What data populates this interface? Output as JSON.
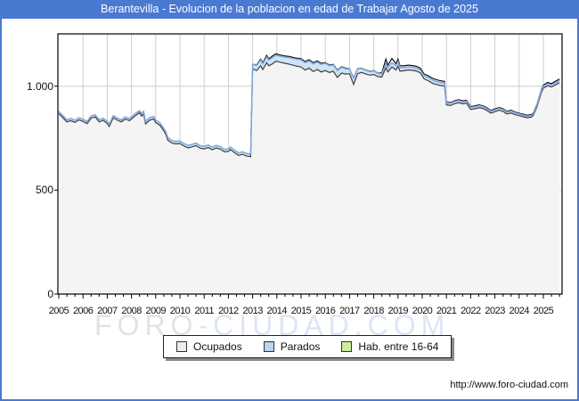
{
  "window": {
    "title": "Berantevilla - Evolucion de la poblacion en edad de Trabajar Agosto de 2025"
  },
  "footer": {
    "url": "http://www.foro-ciudad.com"
  },
  "watermark": {
    "left": "FORO",
    "right": "-CIUDAD.COM"
  },
  "colors": {
    "titlebar": "#4a79d2",
    "frame_border": "#4a79d2",
    "grid": "#cdcdcd",
    "plot_border": "#000000",
    "ocupados_fill": "#f4f4f4",
    "ocupados_stroke": "#3f3f3f",
    "parados_fill": "#cfe2f6",
    "parados_stroke": "#7fa8dc",
    "hab_stroke": "#000000",
    "watermark_left": "#e3e3e3",
    "watermark_right": "#dde5f7"
  },
  "legend": {
    "items": [
      {
        "label": "Ocupados",
        "swatch": "#ececec"
      },
      {
        "label": "Parados",
        "swatch": "#b9d3f0"
      },
      {
        "label": "Hab. entre 16-64",
        "swatch": "#c9ef9e"
      }
    ]
  },
  "chart_data": {
    "type": "area",
    "title": "Berantevilla - Evolucion de la poblacion en edad de Trabajar Agosto de 2025",
    "xlabel": "",
    "ylabel": "",
    "grid": true,
    "legend_position": "bottom",
    "xlim": [
      2005,
      2025.81
    ],
    "ylim": [
      0,
      1251
    ],
    "x_tick_labels": [
      "2005",
      "2006",
      "2007",
      "2008",
      "2009",
      "2010",
      "2011",
      "2012",
      "2013",
      "2014",
      "2015",
      "2016",
      "2017",
      "2018",
      "2019",
      "2020",
      "2021",
      "2022",
      "2023",
      "2024",
      "2025"
    ],
    "y_ticks": [
      {
        "value": 0,
        "label": "0"
      },
      {
        "value": 500,
        "label": "500"
      },
      {
        "value": 1000,
        "label": "1.000"
      }
    ],
    "series_names": [
      "Ocupados",
      "Parados",
      "Hab. entre 16-64"
    ],
    "points_format": [
      "year_decimal",
      "ocupados",
      "parados",
      "hab_16_64_total"
    ],
    "points": [
      [
        2005.0,
        868,
        10,
        878
      ],
      [
        2005.17,
        848,
        10,
        858
      ],
      [
        2005.33,
        828,
        10,
        838
      ],
      [
        2005.5,
        834,
        10,
        844
      ],
      [
        2005.67,
        826,
        10,
        836
      ],
      [
        2005.83,
        838,
        10,
        848
      ],
      [
        2006.0,
        830,
        10,
        840
      ],
      [
        2006.17,
        820,
        10,
        830
      ],
      [
        2006.33,
        846,
        10,
        856
      ],
      [
        2006.5,
        852,
        10,
        862
      ],
      [
        2006.67,
        828,
        10,
        838
      ],
      [
        2006.83,
        836,
        10,
        846
      ],
      [
        2007.0,
        820,
        10,
        830
      ],
      [
        2007.08,
        806,
        10,
        816
      ],
      [
        2007.25,
        848,
        10,
        858
      ],
      [
        2007.42,
        836,
        10,
        846
      ],
      [
        2007.58,
        828,
        10,
        838
      ],
      [
        2007.75,
        842,
        10,
        852
      ],
      [
        2007.92,
        834,
        10,
        844
      ],
      [
        2008.08,
        850,
        10,
        860
      ],
      [
        2008.25,
        866,
        10,
        876
      ],
      [
        2008.33,
        872,
        10,
        882
      ],
      [
        2008.42,
        856,
        12,
        868
      ],
      [
        2008.5,
        866,
        12,
        878
      ],
      [
        2008.58,
        818,
        12,
        830
      ],
      [
        2008.75,
        836,
        12,
        848
      ],
      [
        2008.92,
        842,
        12,
        854
      ],
      [
        2009.0,
        824,
        12,
        836
      ],
      [
        2009.17,
        812,
        12,
        824
      ],
      [
        2009.33,
        786,
        12,
        798
      ],
      [
        2009.42,
        768,
        12,
        780
      ],
      [
        2009.5,
        740,
        12,
        752
      ],
      [
        2009.67,
        726,
        12,
        738
      ],
      [
        2009.83,
        722,
        12,
        734
      ],
      [
        2010.0,
        724,
        12,
        736
      ],
      [
        2010.17,
        712,
        12,
        724
      ],
      [
        2010.33,
        703,
        12,
        715
      ],
      [
        2010.5,
        708,
        12,
        720
      ],
      [
        2010.67,
        714,
        12,
        726
      ],
      [
        2010.83,
        702,
        12,
        714
      ],
      [
        2011.0,
        698,
        12,
        710
      ],
      [
        2011.17,
        705,
        12,
        717
      ],
      [
        2011.33,
        694,
        12,
        706
      ],
      [
        2011.5,
        703,
        12,
        715
      ],
      [
        2011.67,
        697,
        12,
        709
      ],
      [
        2011.83,
        684,
        12,
        696
      ],
      [
        2012.0,
        686,
        12,
        698
      ],
      [
        2012.08,
        695,
        12,
        707
      ],
      [
        2012.25,
        680,
        12,
        692
      ],
      [
        2012.42,
        667,
        12,
        679
      ],
      [
        2012.58,
        672,
        12,
        684
      ],
      [
        2012.75,
        664,
        12,
        676
      ],
      [
        2012.92,
        661,
        12,
        673
      ],
      [
        2013.0,
        1083,
        22,
        1105
      ],
      [
        2013.17,
        1075,
        25,
        1103
      ],
      [
        2013.33,
        1098,
        27,
        1130
      ],
      [
        2013.42,
        1080,
        28,
        1113
      ],
      [
        2013.58,
        1112,
        28,
        1148
      ],
      [
        2013.67,
        1098,
        28,
        1131
      ],
      [
        2013.83,
        1108,
        30,
        1146
      ],
      [
        2013.96,
        1120,
        28,
        1156
      ],
      [
        2014.17,
        1114,
        30,
        1149
      ],
      [
        2014.33,
        1110,
        30,
        1145
      ],
      [
        2014.5,
        1106,
        32,
        1143
      ],
      [
        2014.75,
        1098,
        33,
        1136
      ],
      [
        2015.0,
        1092,
        35,
        1132
      ],
      [
        2015.17,
        1077,
        36,
        1118
      ],
      [
        2015.33,
        1087,
        35,
        1127
      ],
      [
        2015.5,
        1070,
        38,
        1113
      ],
      [
        2015.67,
        1080,
        36,
        1121
      ],
      [
        2015.83,
        1068,
        37,
        1110
      ],
      [
        2016.0,
        1075,
        35,
        1113
      ],
      [
        2016.17,
        1066,
        33,
        1102
      ],
      [
        2016.33,
        1072,
        30,
        1105
      ],
      [
        2016.5,
        1042,
        33,
        1078
      ],
      [
        2016.67,
        1063,
        28,
        1094
      ],
      [
        2016.83,
        1058,
        26,
        1087
      ],
      [
        2017.0,
        1060,
        22,
        1084
      ],
      [
        2017.17,
        1008,
        30,
        1040
      ],
      [
        2017.33,
        1060,
        22,
        1084
      ],
      [
        2017.5,
        1066,
        19,
        1087
      ],
      [
        2017.67,
        1058,
        18,
        1078
      ],
      [
        2017.83,
        1053,
        17,
        1072
      ],
      [
        2018.0,
        1056,
        17,
        1075
      ],
      [
        2018.17,
        1046,
        15,
        1063
      ],
      [
        2018.33,
        1043,
        16,
        1064
      ],
      [
        2018.5,
        1088,
        20,
        1130
      ],
      [
        2018.58,
        1068,
        20,
        1100
      ],
      [
        2018.75,
        1092,
        21,
        1133
      ],
      [
        2018.92,
        1078,
        20,
        1108
      ],
      [
        2019.0,
        1096,
        22,
        1130
      ],
      [
        2019.08,
        1072,
        18,
        1098
      ],
      [
        2019.25,
        1074,
        16,
        1098
      ],
      [
        2019.42,
        1078,
        15,
        1101
      ],
      [
        2019.58,
        1076,
        15,
        1099
      ],
      [
        2019.75,
        1073,
        15,
        1096
      ],
      [
        2019.92,
        1064,
        14,
        1086
      ],
      [
        2020.08,
        1035,
        15,
        1058
      ],
      [
        2020.25,
        1026,
        16,
        1050
      ],
      [
        2020.42,
        1014,
        16,
        1038
      ],
      [
        2020.58,
        1008,
        15,
        1031
      ],
      [
        2020.75,
        1003,
        15,
        1026
      ],
      [
        2020.92,
        1000,
        15,
        1023
      ],
      [
        2021.0,
        910,
        10,
        924
      ],
      [
        2021.17,
        907,
        10,
        921
      ],
      [
        2021.33,
        916,
        10,
        930
      ],
      [
        2021.5,
        920,
        11,
        935
      ],
      [
        2021.67,
        915,
        10,
        929
      ],
      [
        2021.83,
        918,
        10,
        932
      ],
      [
        2022.0,
        888,
        10,
        902
      ],
      [
        2022.17,
        891,
        10,
        905
      ],
      [
        2022.33,
        896,
        10,
        910
      ],
      [
        2022.5,
        893,
        9,
        906
      ],
      [
        2022.67,
        883,
        9,
        896
      ],
      [
        2022.83,
        870,
        9,
        883
      ],
      [
        2023.0,
        877,
        9,
        890
      ],
      [
        2023.17,
        884,
        9,
        897
      ],
      [
        2023.33,
        879,
        9,
        892
      ],
      [
        2023.5,
        866,
        9,
        879
      ],
      [
        2023.67,
        871,
        9,
        884
      ],
      [
        2023.83,
        863,
        9,
        876
      ],
      [
        2024.0,
        858,
        8,
        870
      ],
      [
        2024.17,
        853,
        8,
        865
      ],
      [
        2024.33,
        848,
        8,
        860
      ],
      [
        2024.5,
        851,
        8,
        863
      ],
      [
        2024.58,
        858,
        8,
        870
      ],
      [
        2024.75,
        905,
        9,
        918
      ],
      [
        2024.92,
        970,
        10,
        985
      ],
      [
        2025.0,
        990,
        10,
        1005
      ],
      [
        2025.17,
        1002,
        10,
        1018
      ],
      [
        2025.33,
        996,
        10,
        1012
      ],
      [
        2025.5,
        1006,
        10,
        1024
      ],
      [
        2025.67,
        1016,
        10,
        1034
      ]
    ]
  }
}
